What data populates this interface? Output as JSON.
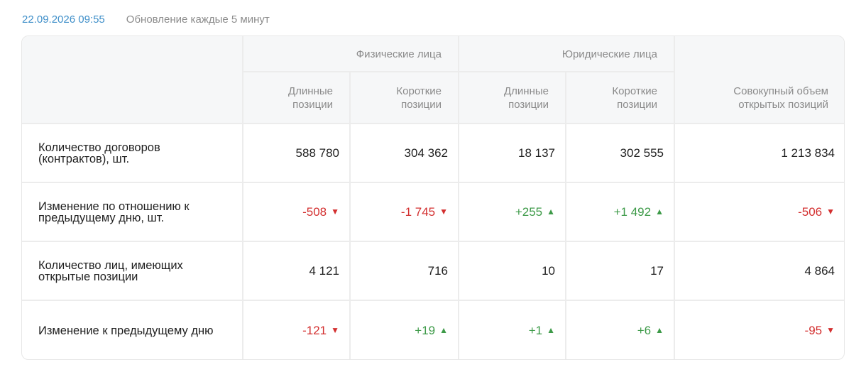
{
  "header": {
    "timestamp": "22.09.2026 09:55",
    "update_note": "Обновление каждые 5 минут"
  },
  "table": {
    "groups": [
      {
        "label": "Физические лица"
      },
      {
        "label": "Юридические лица"
      }
    ],
    "columns": [
      {
        "line1": "Длинные",
        "line2": "позиции"
      },
      {
        "line1": "Короткие",
        "line2": "позиции"
      },
      {
        "line1": "Длинные",
        "line2": "позиции"
      },
      {
        "line1": "Короткие",
        "line2": "позиции"
      },
      {
        "line1": "Совокупный объем",
        "line2": "открытых позиций"
      }
    ],
    "rows": [
      {
        "label": "Количество договоров (контрактов), шт.",
        "cells": [
          {
            "text": "588 780",
            "trend": "none"
          },
          {
            "text": "304 362",
            "trend": "none"
          },
          {
            "text": "18 137",
            "trend": "none"
          },
          {
            "text": "302 555",
            "trend": "none"
          },
          {
            "text": "1 213 834",
            "trend": "none"
          }
        ]
      },
      {
        "label": "Изменение по отношению к предыдущему дню, шт.",
        "cells": [
          {
            "text": "-508",
            "trend": "down"
          },
          {
            "text": "-1 745",
            "trend": "down"
          },
          {
            "text": "+255",
            "trend": "up"
          },
          {
            "text": "+1 492",
            "trend": "up"
          },
          {
            "text": "-506",
            "trend": "down"
          }
        ]
      },
      {
        "label": "Количество лиц, имеющих открытые позиции",
        "cells": [
          {
            "text": "4 121",
            "trend": "none"
          },
          {
            "text": "716",
            "trend": "none"
          },
          {
            "text": "10",
            "trend": "none"
          },
          {
            "text": "17",
            "trend": "none"
          },
          {
            "text": "4 864",
            "trend": "none"
          }
        ]
      },
      {
        "label": "Изменение к предыдущему дню",
        "cells": [
          {
            "text": "-121",
            "trend": "down"
          },
          {
            "text": "+19",
            "trend": "up"
          },
          {
            "text": "+1",
            "trend": "up"
          },
          {
            "text": "+6",
            "trend": "up"
          },
          {
            "text": "-95",
            "trend": "down"
          }
        ]
      }
    ]
  },
  "colors": {
    "accent": "#3f8fc9",
    "negative": "#d32f2f",
    "positive": "#3d9a48",
    "header_bg": "#f6f7f8"
  },
  "icons": {
    "down": "triangle-down-icon",
    "up": "triangle-up-icon"
  }
}
